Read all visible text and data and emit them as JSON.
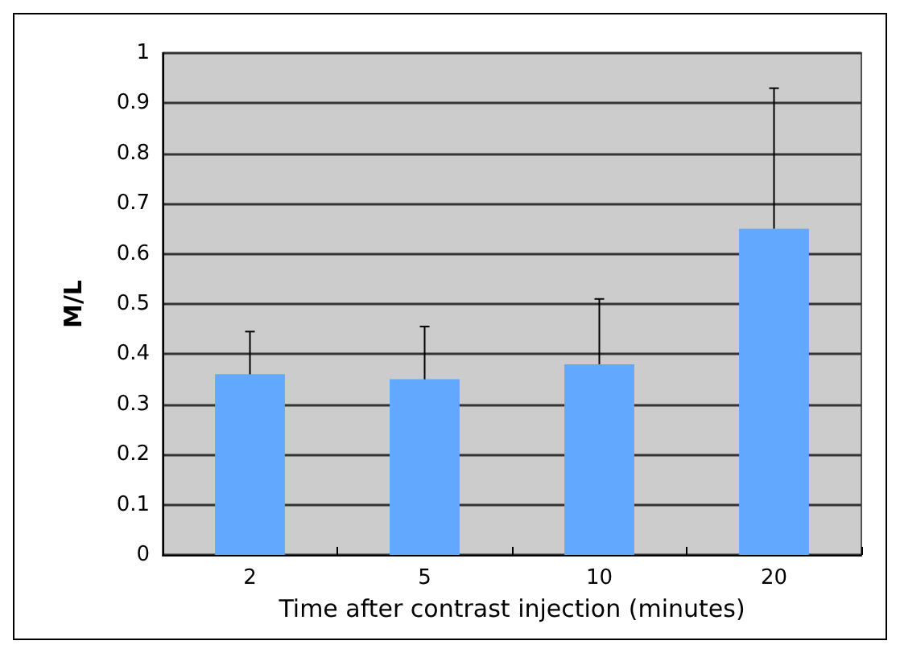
{
  "chart_data": {
    "type": "bar",
    "xlabel": "Time after contrast injection (minutes)",
    "ylabel": "M/L",
    "categories": [
      "2",
      "5",
      "10",
      "20"
    ],
    "values": [
      0.36,
      0.35,
      0.38,
      0.65
    ],
    "errors": [
      [
        0.36,
        0.445
      ],
      [
        0.35,
        0.455
      ],
      [
        0.38,
        0.51
      ],
      [
        0.65,
        0.93
      ]
    ],
    "color": "#62a8ff",
    "ylim": [
      0,
      1
    ],
    "yticks": [
      0,
      0.1,
      0.2,
      0.3,
      0.4,
      0.5,
      0.6,
      0.7,
      0.8,
      0.9,
      1
    ],
    "grid": "y"
  }
}
